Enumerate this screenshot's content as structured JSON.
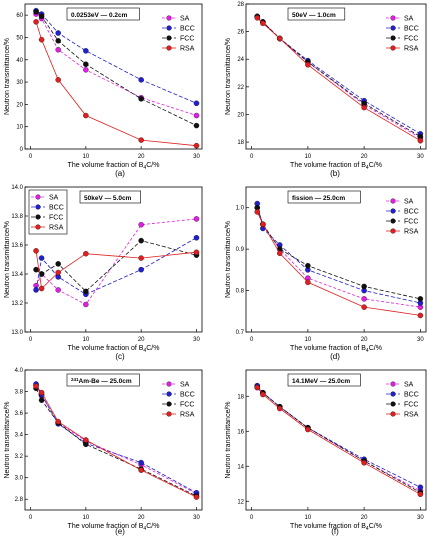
{
  "series_styles": [
    {
      "name": "SA",
      "color": "#e020e0",
      "dash": "3,2"
    },
    {
      "name": "BCC",
      "color": "#2020d0",
      "dash": "4,2"
    },
    {
      "name": "FCC",
      "color": "#111111",
      "dash": "4,2"
    },
    {
      "name": "RSA",
      "color": "#e02020",
      "dash": ""
    }
  ],
  "chart_data": [
    {
      "type": "line",
      "panel_label": "(a)",
      "legend_title": "0.0253eV — 0.2cm",
      "xlabel_text": "The volume fraction of B",
      "xlabel_sub": "4",
      "xlabel_tail": "C/%",
      "ylabel": "Neutron transmittance/%",
      "xlim": [
        -1,
        31
      ],
      "ylim": [
        0,
        65
      ],
      "xticks": [
        0,
        10,
        20,
        30
      ],
      "yticks": [
        0,
        10,
        20,
        30,
        40,
        50,
        60
      ],
      "x": [
        1,
        2,
        5,
        10,
        20,
        30
      ],
      "series": [
        {
          "name": "SA",
          "values": [
            60.5,
            58.5,
            44.5,
            35.5,
            23.0,
            15.0
          ]
        },
        {
          "name": "BCC",
          "values": [
            62.0,
            60.5,
            52.0,
            44.0,
            31.0,
            20.5
          ]
        },
        {
          "name": "FCC",
          "values": [
            61.5,
            59.5,
            48.5,
            38.0,
            22.5,
            10.5
          ]
        },
        {
          "name": "RSA",
          "values": [
            57.0,
            49.0,
            31.0,
            15.0,
            4.0,
            1.5
          ]
        }
      ]
    },
    {
      "type": "line",
      "panel_label": "(b)",
      "legend_title": "50eV — 1.0cm",
      "xlabel_text": "The volume fraction of B",
      "xlabel_sub": "4",
      "xlabel_tail": "C/%",
      "ylabel": "Neutron transmittance/%",
      "xlim": [
        -1,
        31
      ],
      "ylim": [
        17.5,
        28
      ],
      "xticks": [
        0,
        10,
        20,
        30
      ],
      "yticks": [
        18,
        20,
        22,
        24,
        26,
        28
      ],
      "x": [
        1,
        2,
        5,
        10,
        20,
        30
      ],
      "series": [
        {
          "name": "SA",
          "values": [
            27.1,
            26.7,
            25.5,
            23.8,
            20.7,
            18.3
          ]
        },
        {
          "name": "BCC",
          "values": [
            27.1,
            26.7,
            25.5,
            23.9,
            21.0,
            18.6
          ]
        },
        {
          "name": "FCC",
          "values": [
            27.1,
            26.7,
            25.5,
            23.8,
            20.8,
            18.4
          ]
        },
        {
          "name": "RSA",
          "values": [
            27.0,
            26.6,
            25.5,
            23.6,
            20.5,
            18.1
          ]
        }
      ]
    },
    {
      "type": "line",
      "panel_label": "(c)",
      "legend_title": "50keV — 5.0cm",
      "xlabel_text": "The volume fraction of B",
      "xlabel_sub": "4",
      "xlabel_tail": "C/%",
      "ylabel": "Neutron transmittance/%",
      "xlim": [
        -1,
        31
      ],
      "ylim": [
        13.0,
        14.0
      ],
      "xticks": [
        0,
        10,
        20,
        30
      ],
      "yticks": [
        13.0,
        13.2,
        13.4,
        13.6,
        13.8,
        14.0
      ],
      "x": [
        1,
        2,
        5,
        10,
        20,
        30
      ],
      "series": [
        {
          "name": "SA",
          "values": [
            13.32,
            13.4,
            13.29,
            13.19,
            13.74,
            13.78
          ]
        },
        {
          "name": "BCC",
          "values": [
            13.29,
            13.51,
            13.38,
            13.26,
            13.43,
            13.65
          ]
        },
        {
          "name": "FCC",
          "values": [
            13.43,
            13.4,
            13.47,
            13.28,
            13.63,
            13.53
          ]
        },
        {
          "name": "RSA",
          "values": [
            13.56,
            13.3,
            13.41,
            13.54,
            13.51,
            13.55
          ]
        }
      ]
    },
    {
      "type": "line",
      "panel_label": "(d)",
      "legend_title": "fission — 25.0cm",
      "xlabel_text": "The volume fraction of B",
      "xlabel_sub": "4",
      "xlabel_tail": "C/%",
      "ylabel": "Neutron transmittance/%",
      "xlim": [
        -1,
        31
      ],
      "ylim": [
        0.7,
        1.05
      ],
      "xticks": [
        0,
        10,
        20,
        30
      ],
      "yticks": [
        0.7,
        0.8,
        0.9,
        1.0
      ],
      "x": [
        1,
        2,
        5,
        10,
        20,
        30
      ],
      "series": [
        {
          "name": "SA",
          "values": [
            1.0,
            0.96,
            0.9,
            0.83,
            0.78,
            0.76
          ]
        },
        {
          "name": "BCC",
          "values": [
            1.01,
            0.95,
            0.91,
            0.85,
            0.8,
            0.77
          ]
        },
        {
          "name": "FCC",
          "values": [
            1.0,
            0.96,
            0.9,
            0.86,
            0.81,
            0.78
          ]
        },
        {
          "name": "RSA",
          "values": [
            0.99,
            0.96,
            0.89,
            0.82,
            0.76,
            0.74
          ]
        }
      ]
    },
    {
      "type": "line",
      "panel_label": "(e)",
      "legend_title": "Am-Be — 25.0cm",
      "legend_sup": "241",
      "xlabel_text": "The volume fraction of B",
      "xlabel_sub": "4",
      "xlabel_tail": "C/%",
      "ylabel": "Neutron transmittance/%",
      "xlim": [
        -1,
        31
      ],
      "ylim": [
        2.7,
        4.0
      ],
      "xticks": [
        0,
        10,
        20,
        30
      ],
      "yticks": [
        2.8,
        3.0,
        3.2,
        3.4,
        3.6,
        3.8,
        4.0
      ],
      "x": [
        1,
        2,
        5,
        10,
        20,
        30
      ],
      "series": [
        {
          "name": "SA",
          "values": [
            3.86,
            3.76,
            3.51,
            3.34,
            3.12,
            2.85
          ]
        },
        {
          "name": "BCC",
          "values": [
            3.87,
            3.77,
            3.5,
            3.32,
            3.14,
            2.86
          ]
        },
        {
          "name": "FCC",
          "values": [
            3.83,
            3.72,
            3.51,
            3.31,
            3.08,
            2.83
          ]
        },
        {
          "name": "RSA",
          "values": [
            3.85,
            3.79,
            3.52,
            3.35,
            3.07,
            2.82
          ]
        }
      ]
    },
    {
      "type": "line",
      "panel_label": "(f)",
      "legend_title": "14.1MeV — 25.0cm",
      "xlabel_text": "The volume fraction of B",
      "xlabel_sub": "4",
      "xlabel_tail": "C/%",
      "ylabel": "Neutron transmittance/%",
      "xlim": [
        -1,
        31
      ],
      "ylim": [
        11.5,
        19.5
      ],
      "xticks": [
        0,
        10,
        20,
        30
      ],
      "yticks": [
        12,
        14,
        16,
        18
      ],
      "x": [
        1,
        2,
        5,
        10,
        20,
        30
      ],
      "series": [
        {
          "name": "SA",
          "values": [
            18.6,
            18.2,
            17.4,
            16.2,
            14.3,
            12.6
          ]
        },
        {
          "name": "BCC",
          "values": [
            18.6,
            18.2,
            17.4,
            16.2,
            14.4,
            12.8
          ]
        },
        {
          "name": "FCC",
          "values": [
            18.5,
            18.2,
            17.4,
            16.2,
            14.3,
            12.5
          ]
        },
        {
          "name": "RSA",
          "values": [
            18.5,
            18.1,
            17.3,
            16.1,
            14.2,
            12.4
          ]
        }
      ]
    }
  ]
}
